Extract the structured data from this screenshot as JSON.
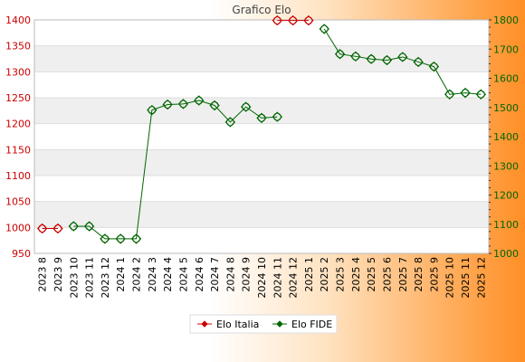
{
  "chart_data": {
    "type": "line",
    "title": "Grafico Elo",
    "categories": [
      "2023 8",
      "2023 9",
      "2023 10",
      "2023 11",
      "2023 12",
      "2024 1",
      "2024 2",
      "2024 3",
      "2024 4",
      "2024 5",
      "2024 6",
      "2024 7",
      "2024 8",
      "2024 9",
      "2024 10",
      "2024 11",
      "2024 12",
      "2025 1",
      "2025 2",
      "2025 3",
      "2025 4",
      "2025 5",
      "2025 6",
      "2025 7",
      "2025 8",
      "2025 9",
      "2025 10",
      "2025 11",
      "2025 12"
    ],
    "y_left": {
      "range": [
        950,
        1400
      ],
      "ticks": [
        950,
        1000,
        1050,
        1100,
        1150,
        1200,
        1250,
        1300,
        1350,
        1400
      ],
      "color": "#cc0000"
    },
    "y_right": {
      "range": [
        1000,
        1800
      ],
      "ticks": [
        1000,
        1100,
        1200,
        1300,
        1400,
        1500,
        1600,
        1700,
        1800
      ],
      "color": "#006600"
    },
    "grid": true,
    "legend_position": "bottom",
    "series": [
      {
        "name": "Elo Italia",
        "axis": "left",
        "color": "#cc0000",
        "marker": "diamond",
        "values": [
          998,
          998,
          null,
          null,
          null,
          null,
          null,
          null,
          null,
          null,
          null,
          null,
          null,
          null,
          null,
          1399,
          1399,
          1399,
          null,
          null,
          null,
          null,
          null,
          null,
          null,
          null,
          null,
          null,
          null
        ]
      },
      {
        "name": "Elo FIDE",
        "axis": "right",
        "color": "#006600",
        "marker": "diamond",
        "values": [
          null,
          null,
          1093,
          1093,
          1050,
          1050,
          1050,
          1491,
          1510,
          1512,
          1524,
          1507,
          1450,
          1502,
          1464,
          1468,
          null,
          null,
          1769,
          1683,
          1675,
          1666,
          1662,
          1673,
          1656,
          1640,
          1545,
          1550,
          1545
        ]
      }
    ]
  }
}
